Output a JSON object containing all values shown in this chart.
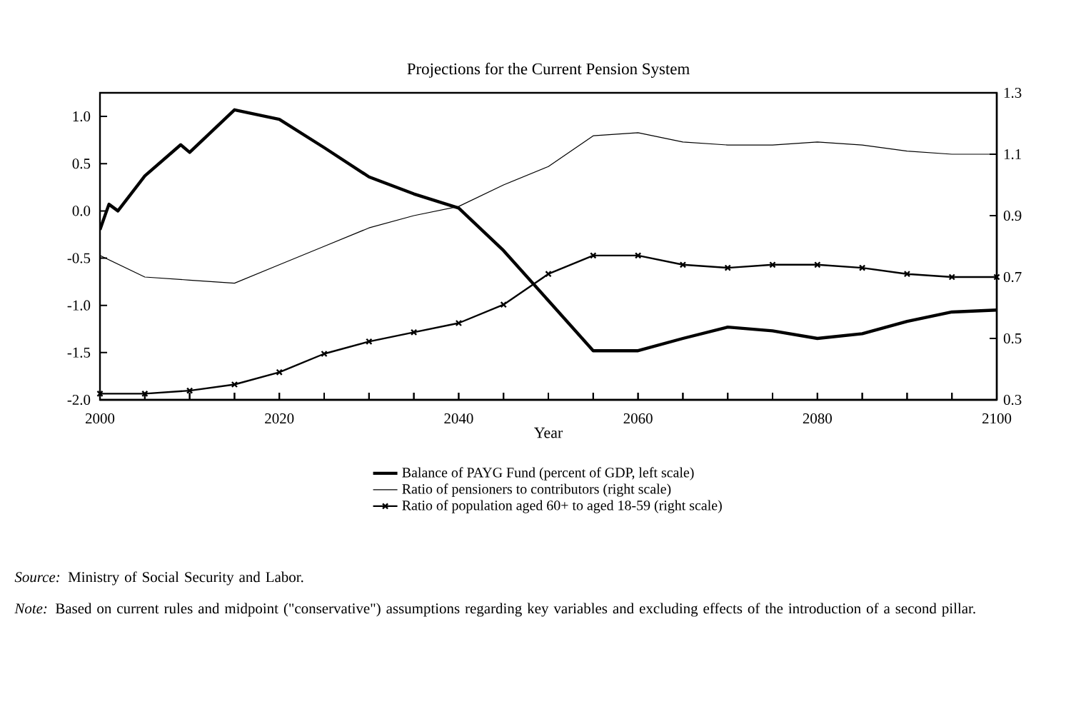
{
  "chart_data": {
    "type": "line",
    "title": "Projections for the Current Pension System",
    "xlabel": "Year",
    "x": [
      2000,
      2005,
      2010,
      2015,
      2020,
      2025,
      2030,
      2035,
      2040,
      2045,
      2050,
      2055,
      2060,
      2065,
      2070,
      2075,
      2080,
      2085,
      2090,
      2095,
      2100
    ],
    "series": [
      {
        "name": "Balance of PAYG Fund (percent of GDP, left scale)",
        "color": "#000000",
        "marker": "none",
        "x": [
          2000,
          2001,
          2002,
          2005,
          2009,
          2010,
          2015,
          2020,
          2025,
          2030,
          2035,
          2040,
          2045,
          2050,
          2055,
          2060,
          2065,
          2070,
          2075,
          2080,
          2085,
          2090,
          2095,
          2100
        ],
        "values": [
          -0.2,
          0.07,
          0.0,
          0.37,
          0.7,
          0.62,
          1.07,
          0.97,
          0.67,
          0.36,
          0.18,
          0.03,
          -0.42,
          -0.95,
          -1.48,
          -1.48,
          -1.35,
          -1.23,
          -1.27,
          -1.35,
          -1.3,
          -1.17,
          -1.07,
          -1.05
        ]
      },
      {
        "name": "Ratio of pensioners to contributors (right scale)",
        "color": "#000000",
        "axis": "y2",
        "marker": "none",
        "values": [
          0.77,
          0.7,
          0.69,
          0.68,
          0.74,
          0.8,
          0.86,
          0.9,
          0.93,
          1.0,
          1.06,
          1.16,
          1.17,
          1.14,
          1.13,
          1.13,
          1.14,
          1.13,
          1.11,
          1.1,
          1.1
        ]
      },
      {
        "name": "Ratio of population aged 60+ to aged 18-59 (right scale)",
        "color": "#000000",
        "axis": "y2",
        "marker": "cross",
        "values": [
          0.32,
          0.32,
          0.33,
          0.35,
          0.39,
          0.45,
          0.49,
          0.52,
          0.55,
          0.61,
          0.71,
          0.77,
          0.77,
          0.74,
          0.73,
          0.74,
          0.74,
          0.73,
          0.71,
          0.7,
          0.7
        ]
      }
    ],
    "xlim": [
      2000,
      2100
    ],
    "xticks": [
      2000,
      {
        "value": 2005,
        "label": null
      },
      {
        "value": 2010,
        "label": null
      },
      {
        "value": 2015,
        "label": null
      },
      2020,
      {
        "value": 2025,
        "label": null
      },
      {
        "value": 2030,
        "label": null
      },
      {
        "value": 2035,
        "label": null
      },
      2040,
      {
        "value": 2045,
        "label": null
      },
      {
        "value": 2050,
        "label": null
      },
      {
        "value": 2055,
        "label": null
      },
      2060,
      {
        "value": 2065,
        "label": null
      },
      {
        "value": 2070,
        "label": null
      },
      {
        "value": 2075,
        "label": null
      },
      2080,
      {
        "value": 2085,
        "label": null
      },
      {
        "value": 2090,
        "label": null
      },
      {
        "value": 2095,
        "label": null
      },
      2100
    ],
    "ylim": [
      -2,
      1.25
    ],
    "yticks": [
      {
        "value": -2,
        "label": "-2.0"
      },
      -1.5,
      {
        "value": -1,
        "label": "-1.0"
      },
      -0.5,
      {
        "value": 0,
        "label": "0.0"
      },
      0.5,
      {
        "value": 1,
        "label": "1.0"
      }
    ],
    "y2lim": [
      0.3,
      1.3
    ],
    "y2ticks": [
      0.3,
      0.5,
      0.7,
      0.9,
      1.1,
      1.3
    ],
    "grid": false,
    "legend": "bottom",
    "annotations": [
      "*Source:* Ministry of Social Security and Labor.",
      "*Note:* Based on current rules and midpoint (\"conservative\") assumptions regarding key variables and excluding effects of the introduction of a second pillar."
    ]
  }
}
